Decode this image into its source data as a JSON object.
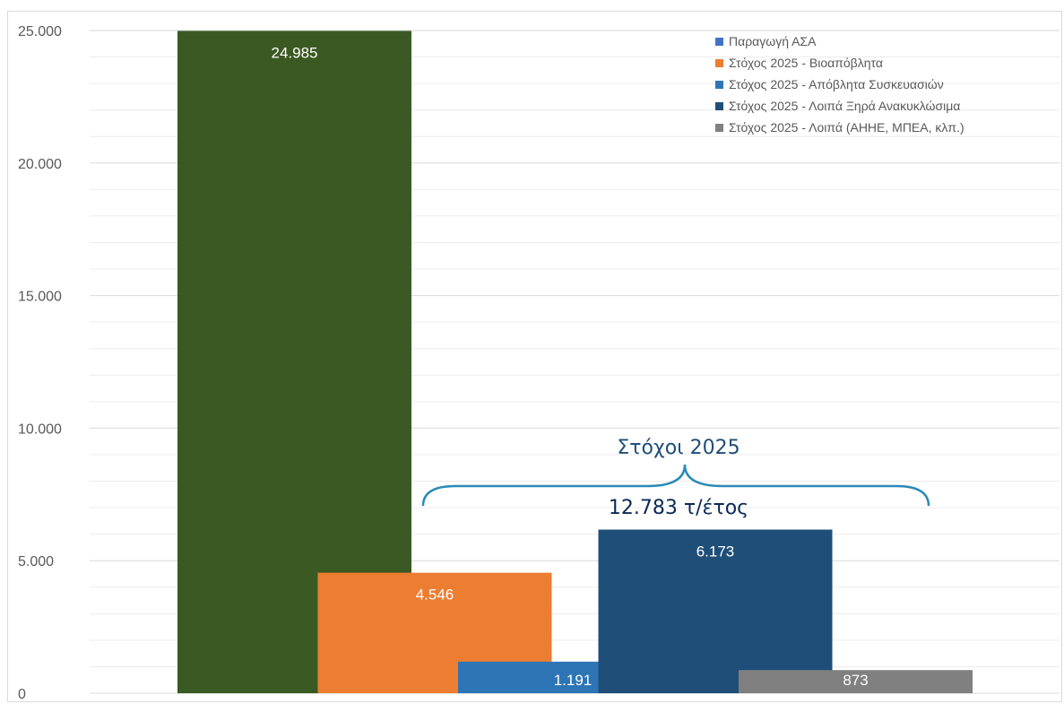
{
  "chart_data": {
    "type": "bar",
    "ylim": [
      0,
      25000
    ],
    "yticks": [
      0,
      5000,
      10000,
      15000,
      20000,
      25000
    ],
    "ytick_labels": [
      "0",
      "5.000",
      "10.000",
      "15.000",
      "20.000",
      "25.000"
    ],
    "grid": true,
    "legend_position": "top-right",
    "series": [
      {
        "name": "Παραγωγή ΑΣΑ",
        "value": 24985,
        "label": "24.985",
        "color": "#3b5a23",
        "legend_color": "#4472c4"
      },
      {
        "name": "Στόχος 2025 - Βιοαπόβλητα",
        "value": 4546,
        "label": "4.546",
        "color": "#ed7d31",
        "legend_color": "#ed7d31"
      },
      {
        "name": "Στόχος 2025 - Απόβλητα Συσκευασιών",
        "value": 1191,
        "label": "1.191",
        "color": "#2e75b6",
        "legend_color": "#2e75b6"
      },
      {
        "name": "Στόχος 2025 - Λοιπά Ξηρά Ανακυκλώσιμα",
        "value": 6173,
        "label": "6.173",
        "color": "#1f4e79",
        "legend_color": "#1f4e79"
      },
      {
        "name": "Στόχος 2025 - Λοιπά (ΑΗΗΕ, ΜΠΕΑ, κλπ.)",
        "value": 873,
        "label": "873",
        "color": "#808080",
        "legend_color": "#808080"
      }
    ],
    "annotation": {
      "title": "Στόχοι 2025",
      "subtitle": "12.783 τ/έτος",
      "title_color": "#1f4e79",
      "subtitle_color": "#0b2a55",
      "brace_color": "#2b8ab8"
    }
  }
}
